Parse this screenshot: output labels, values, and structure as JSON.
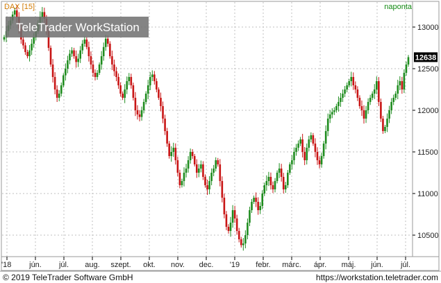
{
  "window": {
    "watermark": "TeleTrader WorkStation",
    "symbol_label": "DAX [15]",
    "period_label": "naponta",
    "copyright": "© 2019 TeleTrader Software GmbH",
    "url": "https://workstation.teletrader.com"
  },
  "colors": {
    "up": "#1e8c1e",
    "down": "#c81414",
    "grid": "#bfbfbf",
    "axis": "#000000",
    "symbol_label": "#d07800",
    "period_label": "#138a13",
    "watermark_bg": "#6e6e6e"
  },
  "chart_data": {
    "type": "candlestick",
    "ylim": [
      10250,
      13300
    ],
    "yticks": [
      10500,
      11000,
      11500,
      12000,
      12500,
      13000
    ],
    "last_value": 12638,
    "grid": true,
    "x_tick_labels": [
      "'18",
      "jún.",
      "júl.",
      "aug.",
      "szept.",
      "okt.",
      "nov.",
      "dec.",
      "'19",
      "febr.",
      "márc.",
      "ápr.",
      "máj.",
      "jún.",
      "júl."
    ],
    "x_tick_months": [
      "2018-05",
      "2018-06",
      "2018-07",
      "2018-08",
      "2018-09",
      "2018-10",
      "2018-11",
      "2018-12",
      "2019-01",
      "2019-02",
      "2019-03",
      "2019-04",
      "2019-05",
      "2019-06",
      "2019-07"
    ],
    "series_closes": [
      12880,
      12950,
      13020,
      13080,
      13150,
      13200,
      13120,
      12980,
      12850,
      12780,
      12700,
      12650,
      12720,
      12800,
      12880,
      12950,
      13050,
      13120,
      13180,
      13100,
      12950,
      12750,
      12550,
      12400,
      12250,
      12150,
      12200,
      12300,
      12420,
      12500,
      12600,
      12680,
      12720,
      12650,
      12580,
      12620,
      12720,
      12800,
      12850,
      12760,
      12650,
      12550,
      12450,
      12400,
      12450,
      12550,
      12650,
      12760,
      12860,
      12800,
      12650,
      12550,
      12470,
      12400,
      12300,
      12200,
      12150,
      12250,
      12350,
      12400,
      12300,
      12150,
      12000,
      11950,
      11920,
      12000,
      12100,
      12200,
      12300,
      12400,
      12430,
      12350,
      12250,
      12150,
      12050,
      11900,
      11750,
      11600,
      11450,
      11500,
      11550,
      11400,
      11250,
      11100,
      11150,
      11250,
      11300,
      11400,
      11500,
      11450,
      11350,
      11250,
      11300,
      11350,
      11200,
      11100,
      11050,
      11150,
      11250,
      11300,
      11400,
      11350,
      11150,
      10950,
      10750,
      10600,
      10550,
      10650,
      10800,
      10700,
      10550,
      10450,
      10380,
      10400,
      10500,
      10650,
      10800,
      10900,
      10950,
      10900,
      10800,
      10850,
      11000,
      11100,
      11150,
      11200,
      11100,
      11050,
      11150,
      11250,
      11300,
      11200,
      11050,
      11100,
      11250,
      11350,
      11400,
      11500,
      11550,
      11600,
      11650,
      11500,
      11400,
      11550,
      11650,
      11700,
      11600,
      11500,
      11400,
      11350,
      11450,
      11600,
      11750,
      11900,
      11950,
      11980,
      12000,
      12050,
      12100,
      12150,
      12200,
      12250,
      12300,
      12350,
      12400,
      12300,
      12250,
      12150,
      12050,
      12000,
      11900,
      12000,
      12100,
      12150,
      12200,
      12250,
      12350,
      12100,
      11900,
      11750,
      11800,
      11900,
      12000,
      12100,
      12150,
      12200,
      12300,
      12350,
      12250,
      12450,
      12550,
      12638
    ]
  }
}
